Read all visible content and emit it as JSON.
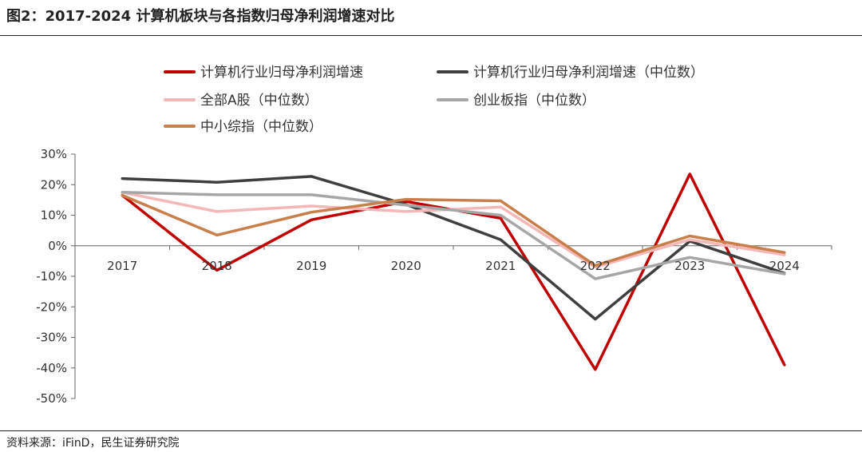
{
  "figure": {
    "title": "图2：2017-2024 计算机板块与各指数归母净利润增速对比",
    "source": "资料来源：iFinD，民生证券研究院"
  },
  "chart_data": {
    "type": "line",
    "x": [
      "2017",
      "2018",
      "2019",
      "2020",
      "2021",
      "2022",
      "2023",
      "2024"
    ],
    "ylim": [
      -50,
      30
    ],
    "yticks": [
      "30%",
      "20%",
      "10%",
      "0%",
      "-10%",
      "-20%",
      "-30%",
      "-40%",
      "-50%"
    ],
    "grid": false,
    "legend_position": "top",
    "series": [
      {
        "name": "计算机行业归母净利润增速",
        "color": "#c00000",
        "values": [
          16.5,
          -8.0,
          8.5,
          14.5,
          9.0,
          -40.5,
          23.5,
          -39.0
        ]
      },
      {
        "name": "计算机行业归母净利润增速（中位数）",
        "color": "#3f3f3f",
        "values": [
          22.0,
          20.8,
          22.7,
          13.5,
          2.0,
          -24.0,
          1.5,
          -9.0
        ]
      },
      {
        "name": "全部A股（中位数）",
        "color": "#f4b8b8",
        "values": [
          17.5,
          11.2,
          13.0,
          11.2,
          12.7,
          -7.0,
          2.0,
          -3.0
        ]
      },
      {
        "name": "创业板指（中位数）",
        "color": "#a6a6a6",
        "values": [
          17.5,
          16.7,
          16.7,
          13.3,
          10.0,
          -10.8,
          -3.8,
          -9.2
        ]
      },
      {
        "name": "中小综指（中位数）",
        "color": "#c87f4a",
        "values": [
          16.5,
          3.5,
          11.0,
          15.2,
          14.7,
          -6.5,
          3.2,
          -2.2
        ]
      }
    ]
  }
}
